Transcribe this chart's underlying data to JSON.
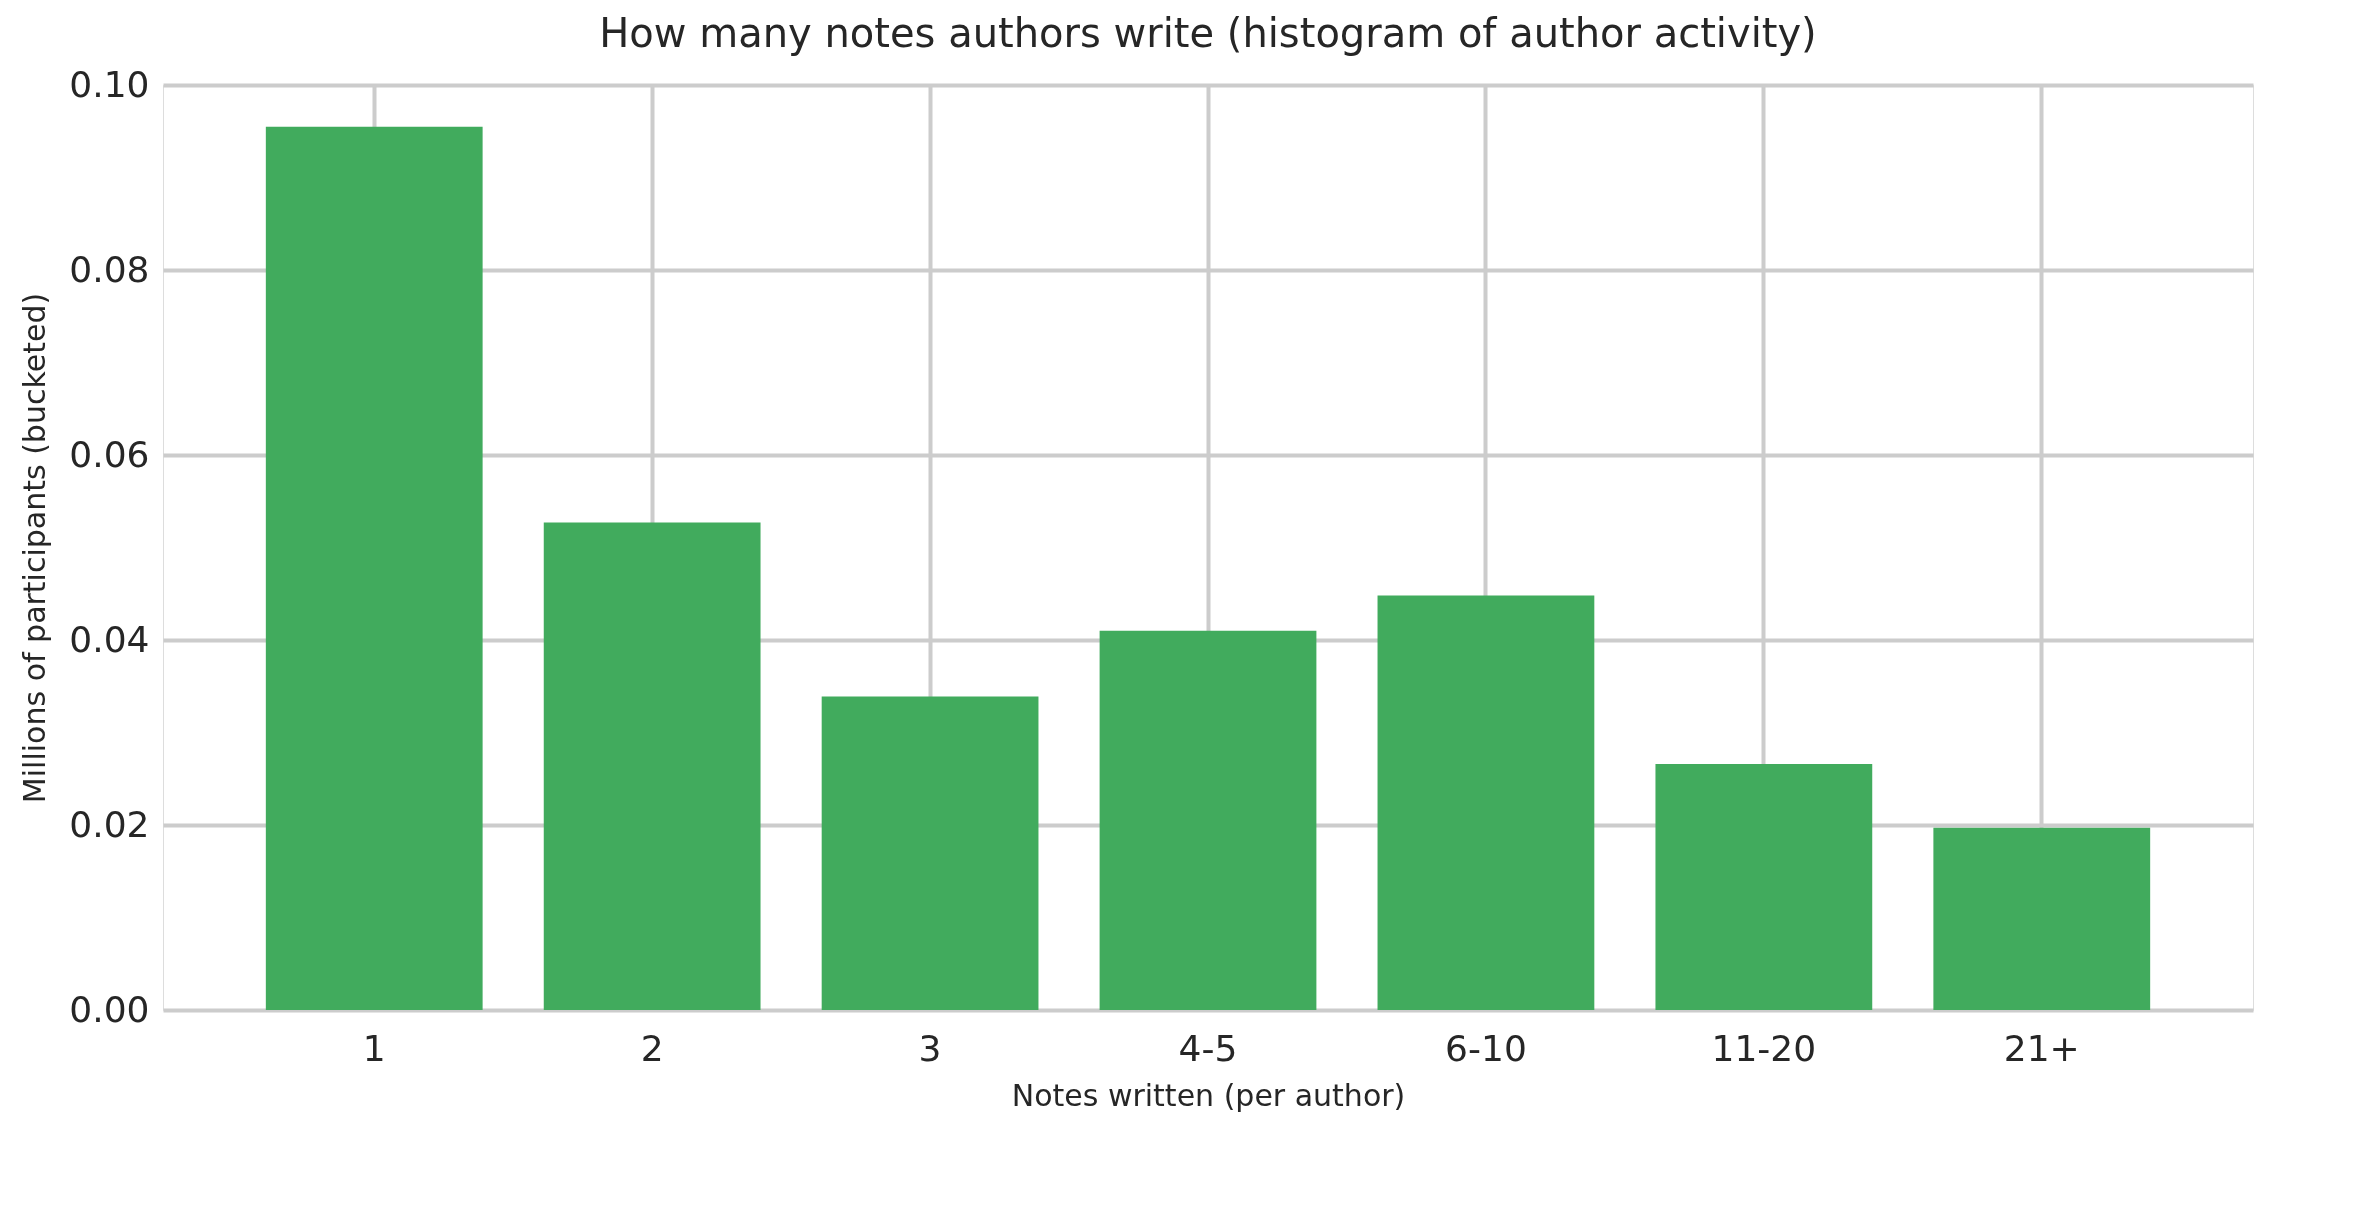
{
  "chart_data": {
    "type": "bar",
    "title": "How many notes authors write (histogram of author activity)",
    "xlabel": "Notes written (per author)",
    "ylabel": "Millions of participants (bucketed)",
    "categories": [
      "1",
      "2",
      "3",
      "4-5",
      "6-10",
      "11-20",
      "21+"
    ],
    "values": [
      0.0955,
      0.0527,
      0.0339,
      0.041,
      0.0448,
      0.0266,
      0.0197
    ],
    "color": "#41ab5d",
    "ylim": [
      0,
      0.1
    ],
    "yticks": [
      {
        "value": 0,
        "label": "0.00"
      },
      {
        "value": 0.02,
        "label": "0.02"
      },
      {
        "value": 0.04,
        "label": "0.04"
      },
      {
        "value": 0.06,
        "label": "0.06"
      },
      {
        "value": 0.08,
        "label": "0.08"
      },
      {
        "value": 0.1,
        "label": "0.10"
      }
    ],
    "grid": true
  }
}
